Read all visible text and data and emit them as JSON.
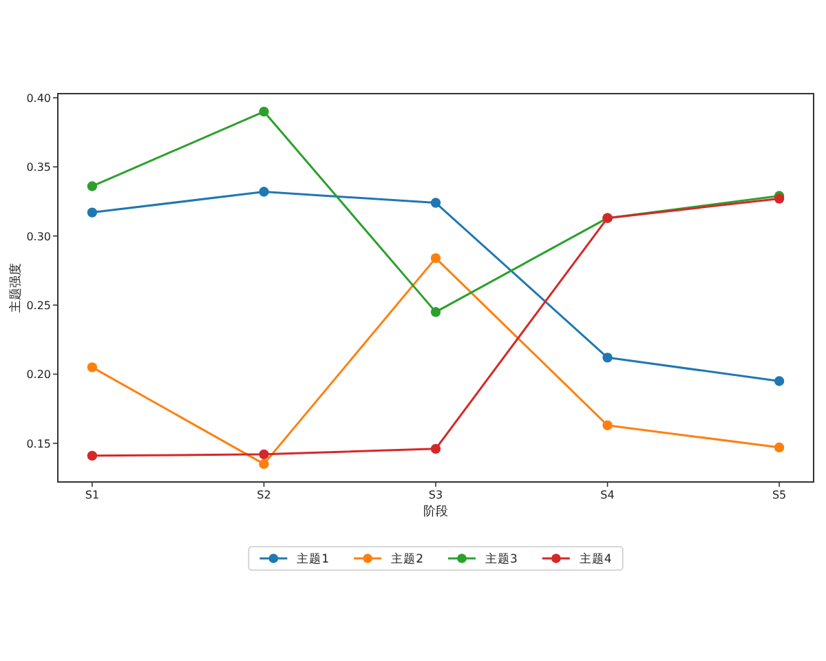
{
  "chart_data": {
    "type": "line",
    "xlabel": "阶段",
    "ylabel": "主题强度",
    "categories": [
      "S1",
      "S2",
      "S3",
      "S4",
      "S5"
    ],
    "ylim": [
      0.122,
      0.403
    ],
    "yticks": [
      0.15,
      {
        "value": 0.2,
        "label": "0.20"
      },
      0.25,
      {
        "value": 0.3,
        "label": "0.30"
      },
      0.35,
      {
        "value": 0.4,
        "label": "0.40"
      }
    ],
    "series": [
      {
        "name": "主题1",
        "color": "#1f77b4",
        "values": [
          0.317,
          0.332,
          0.324,
          0.212,
          0.195
        ]
      },
      {
        "name": "主题2",
        "color": "#ff7f0e",
        "values": [
          0.205,
          0.135,
          0.284,
          0.163,
          0.147
        ]
      },
      {
        "name": "主题3",
        "color": "#2ca02c",
        "values": [
          0.336,
          0.39,
          0.245,
          0.313,
          0.329
        ]
      },
      {
        "name": "主题4",
        "color": "#d62728",
        "values": [
          0.141,
          0.142,
          0.146,
          0.313,
          0.327
        ]
      }
    ],
    "marker": "circle",
    "line_style": "solid",
    "legend": "bottom"
  }
}
